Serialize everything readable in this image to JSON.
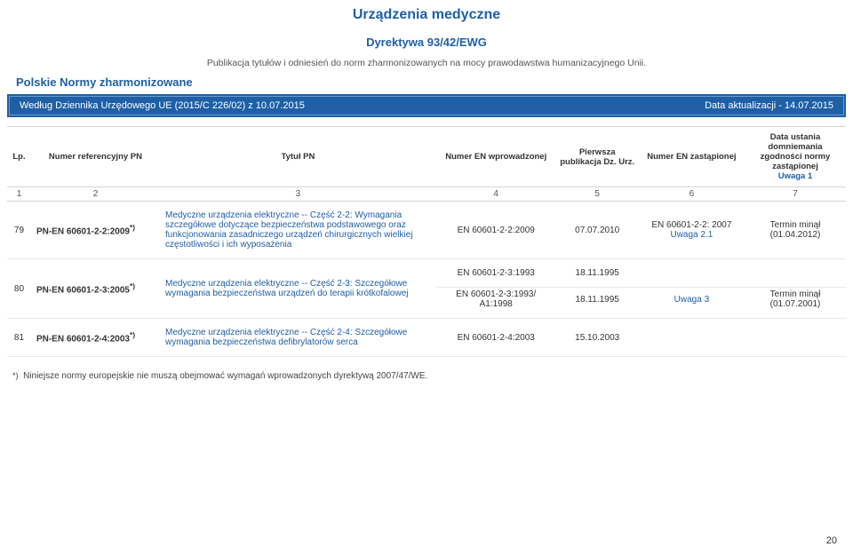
{
  "header": {
    "title": "Urządzenia medyczne",
    "directive": "Dyrektywa 93/42/EWG",
    "subtitle": "Publikacja tytułów i odniesień do norm zharmonizowanych na mocy prawodawstwa humanizacyjnego Unii.",
    "section": "Polskie Normy zharmonizowane"
  },
  "bluebar": {
    "left": "Według Dziennika Urzędowego UE (2015/C 226/02) z 10.07.2015",
    "right": "Data aktualizacji - 14.07.2015"
  },
  "columns": {
    "h1": "Lp.",
    "h2": "Numer referencyjny PN",
    "h3": "Tytuł PN",
    "h4": "Numer EN wprowadzonej",
    "h5": "Pierwsza publikacja Dz. Urz.",
    "h6": "Numer EN zastąpionej",
    "h7": "Data ustania domniemania zgodności normy zastąpionej",
    "h7note": "Uwaga 1",
    "n1": "1",
    "n2": "2",
    "n3": "3",
    "n4": "4",
    "n5": "5",
    "n6": "6",
    "n7": "7"
  },
  "rows": {
    "r79": {
      "lp": "79",
      "ref": "PN-EN 60601-2-2:2009",
      "sup": "*)",
      "title": "Medyczne urządzenia elektryczne -- Część 2-2: Wymagania szczegółowe dotyczące bezpieczeństwa podstawowego oraz funkcjonowania zasadniczego urządzeń chirurgicznych wielkiej częstotliwości i ich wyposażenia",
      "en_intro": "EN 60601-2-2:2009",
      "pub": "07.07.2010",
      "en_repl_a": "EN 60601-2-2: 2007",
      "en_repl_note": "Uwaga 2.1",
      "expiry": "Termin minął (01.04.2012)"
    },
    "r80": {
      "lp": "80",
      "ref": "PN-EN 60601-2-3:2005",
      "sup": "*)",
      "title": "Medyczne urządzenia elektryczne -- Część 2-3: Szczegółowe wymagania bezpieczeństwa urządzeń do terapii krótkofalowej",
      "line1_en": "EN 60601-2-3:1993",
      "line1_pub": "18.11.1995",
      "line2_en": "EN 60601-2-3:1993/ A1:1998",
      "line2_pub": "18.11.1995",
      "line2_note": "Uwaga 3",
      "line2_expiry": "Termin minął (01.07.2001)"
    },
    "r81": {
      "lp": "81",
      "ref": "PN-EN 60601-2-4:2003",
      "sup": "*)",
      "title": "Medyczne urządzenia elektryczne -- Część 2-4: Szczegółowe wymagania bezpieczeństwa defibrylatorów serca",
      "en_intro": "EN 60601-2-4:2003",
      "pub": "15.10.2003"
    }
  },
  "footnote": {
    "mark": "*)",
    "text": "Niniejsze normy europejskie nie muszą obejmować wymagań wprowadzonych dyrektywą 2007/47/WE."
  },
  "pagenum": "20"
}
